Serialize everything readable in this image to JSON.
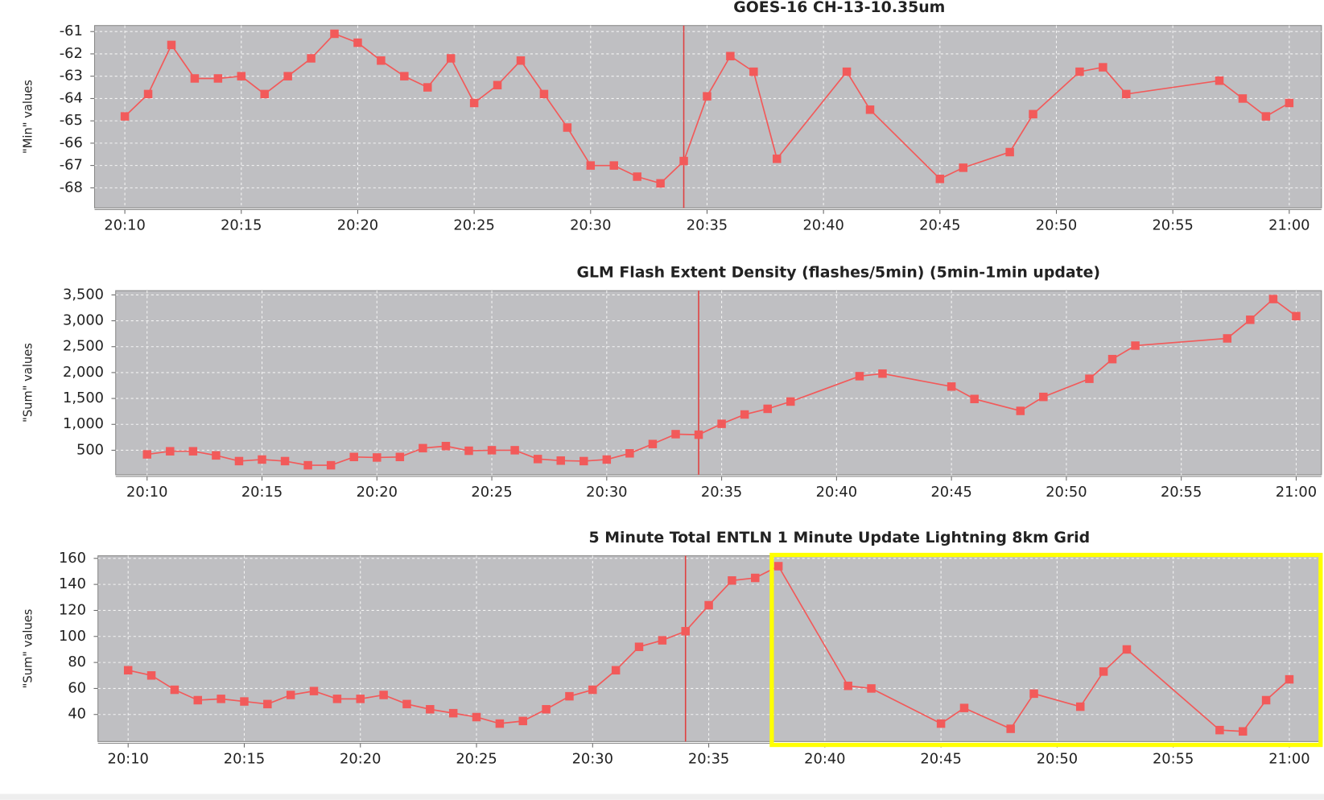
{
  "chart_data": [
    {
      "type": "line",
      "title": "GOES-16 CH-13-10.35um",
      "y_label": "\"Min\" values",
      "xlim": [
        "20:08:42",
        "21:01:23"
      ],
      "xticks": [
        "20:10",
        "20:15",
        "20:20",
        "20:25",
        "20:30",
        "20:35",
        "20:40",
        "20:45",
        "20:50",
        "20:55",
        "21:00"
      ],
      "ylim": [
        -68.9,
        -60.73
      ],
      "yticks": [
        -68,
        -67,
        -66,
        -65,
        -64,
        -63,
        -62,
        -61
      ],
      "grid": true,
      "marker_x": "20:34",
      "series": [
        {
          "color": "#f25a5a",
          "x": [
            "20:10",
            "20:11",
            "20:12",
            "20:13",
            "20:14",
            "20:15",
            "20:16",
            "20:17",
            "20:18",
            "20:19",
            "20:20",
            "20:21",
            "20:22",
            "20:23",
            "20:24",
            "20:25",
            "20:26",
            "20:27",
            "20:28",
            "20:29",
            "20:30",
            "20:31",
            "20:32",
            "20:33",
            "20:34",
            "20:35",
            "20:36",
            "20:37",
            "20:38",
            "20:41",
            "20:42",
            "20:45",
            "20:46",
            "20:48",
            "20:49",
            "20:51",
            "20:52",
            "20:53",
            "20:57",
            "20:58",
            "20:59",
            "21:00"
          ],
          "values": [
            -64.8,
            -63.8,
            -61.6,
            -63.1,
            -63.1,
            -63.0,
            -63.8,
            -63.0,
            -62.2,
            -61.1,
            -61.5,
            -62.3,
            -63.0,
            -63.5,
            -62.2,
            -64.2,
            -63.4,
            -62.3,
            -63.8,
            -65.3,
            -67.0,
            -67.0,
            -67.5,
            -67.8,
            -66.8,
            -63.9,
            -62.1,
            -62.8,
            -66.7,
            -62.8,
            -64.5,
            -67.6,
            -67.1,
            -66.4,
            -64.7,
            -62.8,
            -62.6,
            -63.8,
            -63.2,
            -64.0,
            -64.8,
            -64.2
          ]
        }
      ]
    },
    {
      "type": "line",
      "title": "GLM Flash Extent Density (flashes/5min) (5min-1min update)",
      "y_label": "\"Sum\" values",
      "xlim": [
        "20:08:38",
        "21:01:06"
      ],
      "xticks": [
        "20:10",
        "20:15",
        "20:20",
        "20:25",
        "20:30",
        "20:35",
        "20:40",
        "20:45",
        "20:50",
        "20:55",
        "21:00"
      ],
      "ylim": [
        27,
        3582
      ],
      "yticks": [
        500,
        {
          "value": 1000,
          "label": "1,000"
        },
        {
          "value": 1500,
          "label": "1,500"
        },
        {
          "value": 2000,
          "label": "2,000"
        },
        {
          "value": 2500,
          "label": "2,500"
        },
        {
          "value": 3000,
          "label": "3,000"
        },
        {
          "value": 3500,
          "label": "3,500"
        }
      ],
      "grid": true,
      "marker_x": "20:34",
      "series": [
        {
          "color": "#f25a5a",
          "x": [
            "20:10",
            "20:11",
            "20:12",
            "20:13",
            "20:14",
            "20:15",
            "20:16",
            "20:17",
            "20:18",
            "20:19",
            "20:20",
            "20:21",
            "20:22",
            "20:23",
            "20:24",
            "20:25",
            "20:26",
            "20:27",
            "20:28",
            "20:29",
            "20:30",
            "20:31",
            "20:32",
            "20:33",
            "20:34",
            "20:35",
            "20:36",
            "20:37",
            "20:38",
            "20:41",
            "20:42",
            "20:45",
            "20:46",
            "20:48",
            "20:49",
            "20:51",
            "20:52",
            "20:53",
            "20:57",
            "20:58",
            "20:59",
            "21:00"
          ],
          "values": [
            420,
            480,
            480,
            400,
            290,
            320,
            290,
            210,
            210,
            370,
            360,
            370,
            540,
            580,
            490,
            500,
            500,
            330,
            300,
            290,
            320,
            440,
            620,
            810,
            800,
            1010,
            1190,
            1300,
            1440,
            1930,
            1980,
            1730,
            1490,
            1260,
            1530,
            1880,
            2260,
            2520,
            2660,
            3020,
            3420,
            3090
          ]
        }
      ]
    },
    {
      "type": "line",
      "title": "5 Minute Total ENTLN 1 Minute Update Lightning 8km Grid",
      "y_label": "\"Sum\" values",
      "xlim": [
        "20:08:42",
        "21:01:23"
      ],
      "xticks": [
        "20:10",
        "20:15",
        "20:20",
        "20:25",
        "20:30",
        "20:35",
        "20:40",
        "20:45",
        "20:50",
        "20:55",
        "21:00"
      ],
      "ylim": [
        19.2,
        162
      ],
      "yticks": [
        40,
        60,
        80,
        100,
        120,
        140,
        160
      ],
      "grid": true,
      "marker_x": "20:34",
      "series": [
        {
          "color": "#f25a5a",
          "x": [
            "20:10",
            "20:11",
            "20:12",
            "20:13",
            "20:14",
            "20:15",
            "20:16",
            "20:17",
            "20:18",
            "20:19",
            "20:20",
            "20:21",
            "20:22",
            "20:23",
            "20:24",
            "20:25",
            "20:26",
            "20:27",
            "20:28",
            "20:29",
            "20:30",
            "20:31",
            "20:32",
            "20:33",
            "20:34",
            "20:35",
            "20:36",
            "20:37",
            "20:38",
            "20:41",
            "20:42",
            "20:45",
            "20:46",
            "20:48",
            "20:49",
            "20:51",
            "20:52",
            "20:53",
            "20:57",
            "20:58",
            "20:59",
            "21:00"
          ],
          "values": [
            74,
            70,
            59,
            51,
            52,
            50,
            48,
            55,
            58,
            52,
            52,
            55,
            48,
            44,
            41,
            38,
            33,
            35,
            44,
            54,
            59,
            74,
            92,
            97,
            104,
            124,
            143,
            145,
            154,
            62,
            60,
            33,
            45,
            29,
            56,
            46,
            73,
            90,
            28,
            27,
            51,
            67
          ]
        }
      ]
    }
  ]
}
